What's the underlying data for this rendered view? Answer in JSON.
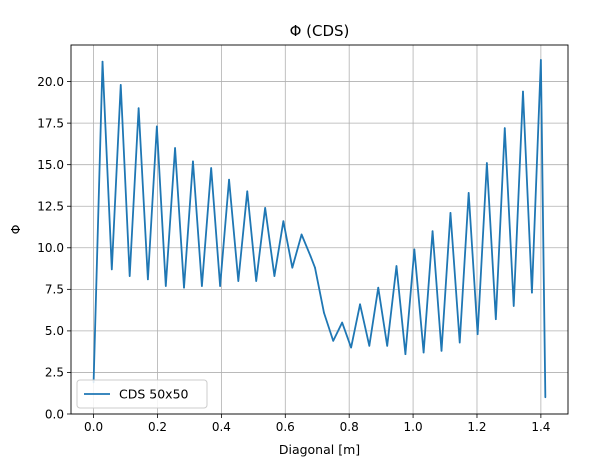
{
  "chart_data": {
    "type": "line",
    "title": "Φ  (CDS)",
    "xlabel": "Diagonal [m]",
    "ylabel": "Φ",
    "xlim": [
      -0.0707,
      1.4849
    ],
    "ylim": [
      0,
      22.2
    ],
    "xticks": [
      0.0,
      0.2,
      0.4,
      0.6,
      0.8,
      1.0,
      1.2,
      1.4
    ],
    "xtick_labels": [
      "0.0",
      "0.2",
      "0.4",
      "0.6",
      "0.8",
      "1.0",
      "1.2",
      "1.4"
    ],
    "yticks": [
      0.0,
      2.5,
      5.0,
      7.5,
      10.0,
      12.5,
      15.0,
      17.5,
      20.0
    ],
    "ytick_labels": [
      "0.0",
      "2.5",
      "5.0",
      "7.5",
      "10.0",
      "12.5",
      "15.0",
      "17.5",
      "20.0"
    ],
    "grid": true,
    "legend_position": "lower-left",
    "series": [
      {
        "name": "CDS 50x50",
        "color": "#1f77b4",
        "x": [
          0.0,
          0.028,
          0.057,
          0.085,
          0.113,
          0.141,
          0.17,
          0.198,
          0.226,
          0.255,
          0.283,
          0.311,
          0.339,
          0.368,
          0.396,
          0.424,
          0.453,
          0.481,
          0.509,
          0.537,
          0.566,
          0.594,
          0.622,
          0.651,
          0.679,
          0.693,
          0.721,
          0.75,
          0.778,
          0.806,
          0.834,
          0.863,
          0.891,
          0.919,
          0.948,
          0.976,
          1.004,
          1.033,
          1.061,
          1.089,
          1.117,
          1.146,
          1.174,
          1.202,
          1.231,
          1.259,
          1.287,
          1.315,
          1.344,
          1.372,
          1.4,
          1.414
        ],
        "y": [
          1.9,
          21.2,
          8.7,
          19.8,
          8.3,
          18.4,
          8.1,
          17.3,
          7.7,
          16.0,
          7.6,
          15.2,
          7.7,
          14.8,
          7.7,
          14.1,
          8.0,
          13.4,
          8.0,
          12.4,
          8.3,
          11.6,
          8.8,
          10.8,
          9.5,
          8.8,
          6.1,
          4.4,
          5.5,
          4.0,
          6.6,
          4.1,
          7.6,
          4.1,
          8.9,
          3.6,
          9.9,
          3.7,
          11.0,
          3.8,
          12.1,
          4.3,
          13.3,
          4.8,
          15.1,
          5.7,
          17.2,
          6.5,
          19.4,
          7.3,
          21.3,
          1.0
        ]
      }
    ]
  }
}
